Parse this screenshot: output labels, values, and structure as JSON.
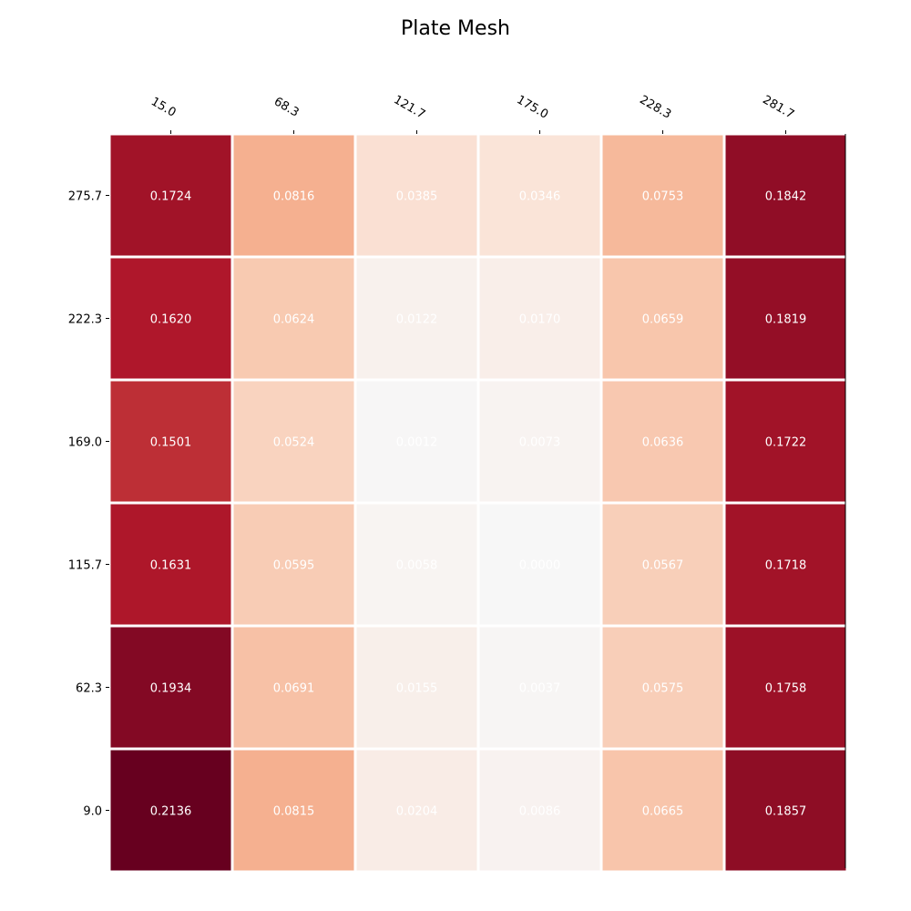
{
  "chart_data": {
    "type": "heatmap",
    "title": "Plate Mesh",
    "xlabel": "",
    "ylabel": "",
    "x": [
      "15.0",
      "68.3",
      "121.7",
      "175.0",
      "228.3",
      "281.7"
    ],
    "y": [
      "275.7",
      "222.3",
      "169.0",
      "115.7",
      "62.3",
      "9.0"
    ],
    "values": [
      [
        0.1724,
        0.0816,
        0.0385,
        0.0346,
        0.0753,
        0.1842
      ],
      [
        0.162,
        0.0624,
        0.0122,
        0.017,
        0.0659,
        0.1819
      ],
      [
        0.1501,
        0.0524,
        0.0012,
        0.0073,
        0.0636,
        0.1722
      ],
      [
        0.1631,
        0.0595,
        0.0058,
        0.0,
        0.0567,
        0.1718
      ],
      [
        0.1934,
        0.0691,
        0.0155,
        0.0037,
        0.0575,
        0.1758
      ],
      [
        0.2136,
        0.0815,
        0.0204,
        0.0086,
        0.0665,
        0.1857
      ]
    ],
    "value_range": [
      0.0,
      0.2136
    ],
    "colormap": "RdBu_r (upper half, light gray to dark red)",
    "cell_labels": true,
    "x_axis_position": "top",
    "grid": false,
    "legend": "none"
  }
}
